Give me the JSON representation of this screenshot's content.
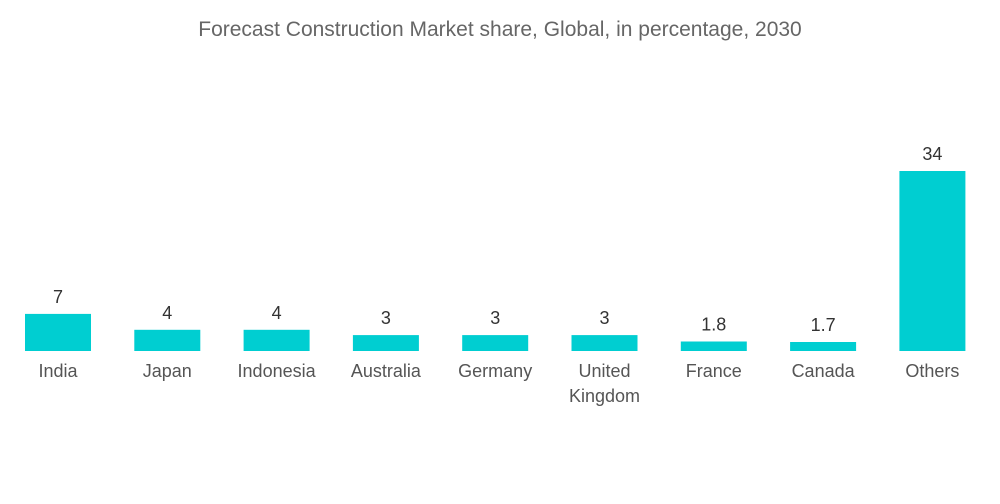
{
  "chart_data": {
    "type": "bar",
    "title": "Forecast Construction Market share, Global, in percentage, 2030",
    "xlabel": "",
    "ylabel": "",
    "categories": [
      [
        "India"
      ],
      [
        "Japan"
      ],
      [
        "Indonesia"
      ],
      [
        "Australia"
      ],
      [
        "Germany"
      ],
      [
        "United",
        "Kingdom"
      ],
      [
        "France"
      ],
      [
        "Canada"
      ],
      [
        "Others"
      ]
    ],
    "values": [
      7,
      4,
      4,
      3,
      3,
      3,
      1.8,
      1.7,
      34
    ],
    "value_labels": [
      "7",
      "4",
      "4",
      "3",
      "3",
      "3",
      "1.8",
      "1.7",
      "34"
    ],
    "ylim": [
      0,
      34
    ],
    "grid": false,
    "legend": "none",
    "bar_color": "#00CED1"
  }
}
